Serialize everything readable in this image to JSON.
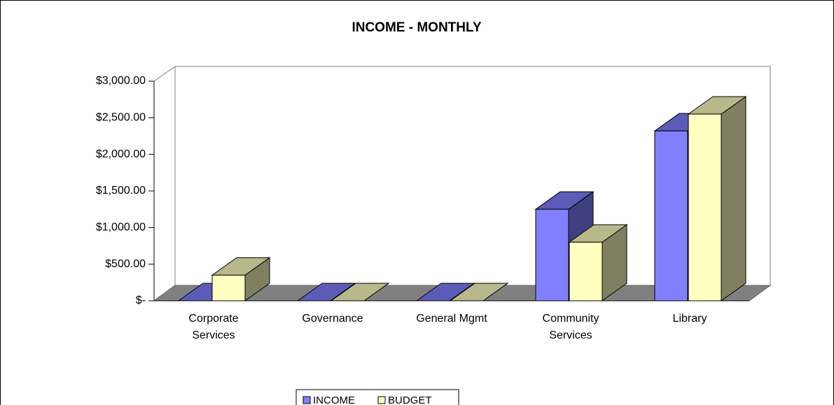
{
  "chart_data": {
    "type": "bar3d",
    "title": "INCOME - MONTHLY",
    "categories": [
      "Corporate Services",
      "Governance",
      "General Mgmt",
      "Community Services",
      "Library"
    ],
    "series": [
      {
        "name": "INCOME",
        "color": "#8080ff",
        "values": [
          0,
          0,
          0,
          1250,
          2320
        ]
      },
      {
        "name": "BUDGET",
        "color": "#ffffc0",
        "values": [
          350,
          0,
          0,
          800,
          2550
        ]
      }
    ],
    "ylim": [
      0,
      3000
    ],
    "yticks": [
      {
        "value": 0,
        "label": "$-"
      },
      {
        "value": 500,
        "label": "$500.00"
      },
      {
        "value": 1000,
        "label": "$1,000.00"
      },
      {
        "value": 1500,
        "label": "$1,500.00"
      },
      {
        "value": 2000,
        "label": "$2,000.00"
      },
      {
        "value": 2500,
        "label": "$2,500.00"
      },
      {
        "value": 3000,
        "label": "$3,000.00"
      }
    ],
    "legend": "bottom"
  }
}
